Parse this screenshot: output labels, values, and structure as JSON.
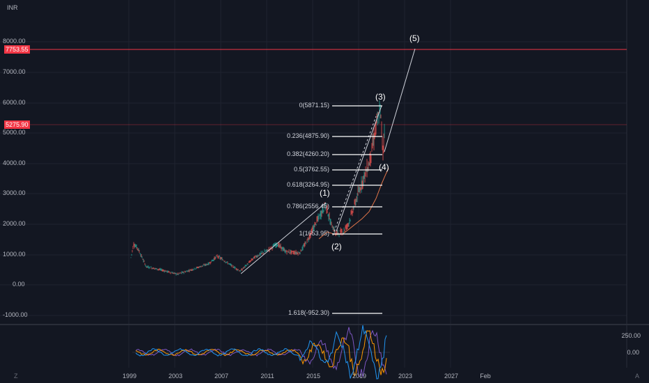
{
  "currency": "INR",
  "y_axis_labels": [
    "8000.00",
    "7000.00",
    "6000.00",
    "5000.00",
    "4000.00",
    "3000.00",
    "2000.00",
    "1000.00",
    "0.00",
    "-1000.00"
  ],
  "price_tags": [
    {
      "label": "7753.55",
      "color": "#f23645"
    },
    {
      "label": "5275.90",
      "color": "#f23645"
    }
  ],
  "x_axis_labels": [
    "1999",
    "2003",
    "2007",
    "2011",
    "2015",
    "2019",
    "2023",
    "2027",
    "Feb"
  ],
  "fib_levels": [
    {
      "label": "0(5871.15)"
    },
    {
      "label": "0.236(4875.90)"
    },
    {
      "label": "0.382(4260.20)"
    },
    {
      "label": "0.5(3762.55)"
    },
    {
      "label": "0.618(3264.95)"
    },
    {
      "label": "0.786(2556.45)"
    },
    {
      "label": "1(1653.95)"
    },
    {
      "label": "1.618(-952.30)"
    }
  ],
  "wave_labels": [
    "(1)",
    "(2)",
    "(3)",
    "(4)",
    "(5)"
  ],
  "indicator_labels": [
    "250.00",
    "0.00"
  ],
  "corner_labels": {
    "bottom_left": "Z",
    "bottom_right": "A"
  },
  "colors": {
    "background": "#131722",
    "up": "#26a69a",
    "down": "#ef5350",
    "price_line": "#f23645",
    "trend": "#d1d4dc"
  }
}
